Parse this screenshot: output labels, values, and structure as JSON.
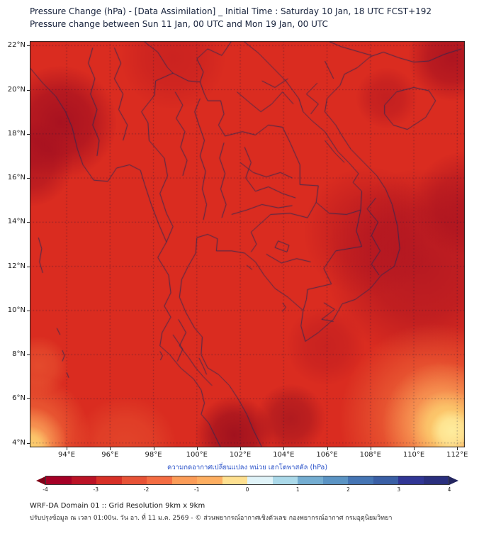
{
  "title": {
    "line1": "Pressure Change (hPa) - [Data Assimilation] _ Initial Time : Saturday 10 Jan, 18 UTC FCST+192",
    "line2": "Pressure change between Sun 11 Jan, 00 UTC and Mon 19 Jan, 00 UTC"
  },
  "map_view": {
    "lon_min": 92.3,
    "lon_max": 112.35,
    "lat_min": 3.8,
    "lat_max": 22.2
  },
  "axes": {
    "x_ticks": [
      {
        "label": "94°E",
        "lon": 94
      },
      {
        "label": "96°E",
        "lon": 96
      },
      {
        "label": "98°E",
        "lon": 98
      },
      {
        "label": "100°E",
        "lon": 100
      },
      {
        "label": "102°E",
        "lon": 102
      },
      {
        "label": "104°E",
        "lon": 104
      },
      {
        "label": "106°E",
        "lon": 106
      },
      {
        "label": "108°E",
        "lon": 108
      },
      {
        "label": "110°E",
        "lon": 110
      },
      {
        "label": "112°E",
        "lon": 112
      }
    ],
    "y_ticks": [
      {
        "label": "22°N",
        "lat": 22
      },
      {
        "label": "20°N",
        "lat": 20
      },
      {
        "label": "18°N",
        "lat": 18
      },
      {
        "label": "16°N",
        "lat": 16
      },
      {
        "label": "14°N",
        "lat": 14
      },
      {
        "label": "12°N",
        "lat": 12
      },
      {
        "label": "10°N",
        "lat": 10
      },
      {
        "label": "8°N",
        "lat": 8
      },
      {
        "label": "6°N",
        "lat": 6
      },
      {
        "label": "4°N",
        "lat": 4
      }
    ]
  },
  "field": {
    "base_color": "#da2c20",
    "blobs": [
      {
        "fx": 0.07,
        "fy": 0.2,
        "fr": 0.13,
        "c": "#9c0c20",
        "a": 0.8
      },
      {
        "fx": 0.0,
        "fy": 0.3,
        "fr": 0.1,
        "c": "#9c0c20",
        "a": 0.6
      },
      {
        "fx": 0.33,
        "fy": 0.04,
        "fr": 0.12,
        "c": "#b01320",
        "a": 0.35
      },
      {
        "fx": 0.97,
        "fy": 0.04,
        "fr": 0.1,
        "c": "#9c0c20",
        "a": 0.7
      },
      {
        "fx": 0.9,
        "fy": 0.55,
        "fr": 0.22,
        "c": "#a00e22",
        "a": 0.6
      },
      {
        "fx": 0.78,
        "fy": 0.47,
        "fr": 0.15,
        "c": "#a81122",
        "a": 0.45
      },
      {
        "fx": 1.0,
        "fy": 0.4,
        "fr": 0.12,
        "c": "#9c0c20",
        "a": 0.5
      },
      {
        "fx": 0.82,
        "fy": 0.14,
        "fr": 0.07,
        "c": "#a81122",
        "a": 0.45
      },
      {
        "fx": 0.47,
        "fy": 0.97,
        "fr": 0.09,
        "c": "#8f0a1e",
        "a": 0.75
      },
      {
        "fx": 0.6,
        "fy": 0.93,
        "fr": 0.08,
        "c": "#96101f",
        "a": 0.6
      },
      {
        "fx": 0.68,
        "fy": 0.75,
        "fr": 0.09,
        "c": "#a81122",
        "a": 0.35
      },
      {
        "fx": 0.22,
        "fy": 1.0,
        "fr": 0.12,
        "c": "#ef6a3a",
        "a": 0.4
      },
      {
        "fx": 0.93,
        "fy": 0.93,
        "fr": 0.22,
        "c": "#ef6a3a",
        "a": 0.85
      },
      {
        "fx": 0.95,
        "fy": 0.94,
        "fr": 0.14,
        "c": "#fba55b",
        "a": 0.95
      },
      {
        "fx": 0.96,
        "fy": 0.95,
        "fr": 0.085,
        "c": "#fdd271",
        "a": 1.0
      },
      {
        "fx": 0.97,
        "fy": 0.96,
        "fr": 0.05,
        "c": "#ffeea0",
        "a": 0.95
      },
      {
        "fx": 0.0,
        "fy": 0.97,
        "fr": 0.14,
        "c": "#ef6a3a",
        "a": 0.85
      },
      {
        "fx": 0.0,
        "fy": 0.99,
        "fr": 0.085,
        "c": "#fba55b",
        "a": 0.95
      },
      {
        "fx": 0.0,
        "fy": 1.0,
        "fr": 0.05,
        "c": "#fdd271",
        "a": 1.0
      },
      {
        "fx": 0.02,
        "fy": 0.8,
        "fr": 0.07,
        "c": "#ef6a3a",
        "a": 0.5
      }
    ]
  },
  "borders": [
    [
      [
        92.3,
        21.0
      ],
      [
        92.9,
        20.3
      ],
      [
        93.5,
        19.7
      ],
      [
        93.95,
        19.0
      ],
      [
        94.25,
        18.3
      ],
      [
        94.5,
        17.3
      ],
      [
        94.75,
        16.6
      ],
      [
        95.25,
        15.9
      ],
      [
        95.9,
        15.85
      ],
      [
        96.3,
        16.45
      ],
      [
        96.9,
        16.6
      ],
      [
        97.4,
        16.35
      ],
      [
        97.6,
        15.7
      ],
      [
        97.9,
        14.8
      ],
      [
        98.25,
        13.9
      ],
      [
        98.6,
        13.1
      ],
      [
        98.2,
        12.4
      ],
      [
        98.7,
        11.6
      ],
      [
        98.8,
        10.8
      ],
      [
        98.5,
        10.2
      ],
      [
        98.8,
        9.7
      ],
      [
        98.4,
        9.0
      ],
      [
        98.3,
        8.4
      ],
      [
        98.75,
        8.0
      ],
      [
        99.25,
        7.4
      ],
      [
        99.85,
        6.9
      ],
      [
        100.2,
        6.4
      ],
      [
        100.35,
        5.8
      ],
      [
        100.2,
        5.3
      ],
      [
        100.55,
        4.9
      ],
      [
        100.85,
        4.3
      ],
      [
        101.1,
        3.8
      ]
    ],
    [
      [
        103.0,
        3.8
      ],
      [
        102.6,
        4.6
      ],
      [
        102.3,
        5.3
      ],
      [
        101.9,
        6.0
      ],
      [
        101.5,
        6.6
      ],
      [
        101.0,
        7.1
      ],
      [
        100.5,
        7.4
      ],
      [
        100.2,
        8.0
      ],
      [
        100.25,
        8.8
      ],
      [
        99.9,
        9.2
      ],
      [
        99.5,
        9.9
      ],
      [
        99.2,
        10.6
      ],
      [
        99.3,
        11.4
      ],
      [
        99.6,
        12.0
      ],
      [
        99.95,
        12.6
      ],
      [
        100.0,
        13.3
      ],
      [
        100.5,
        13.45
      ],
      [
        100.95,
        13.25
      ],
      [
        100.9,
        12.7
      ],
      [
        101.6,
        12.7
      ],
      [
        102.2,
        12.6
      ],
      [
        102.7,
        12.2
      ],
      [
        103.1,
        11.6
      ],
      [
        103.6,
        11.0
      ],
      [
        104.2,
        10.6
      ],
      [
        104.9,
        10.0
      ],
      [
        104.8,
        9.3
      ],
      [
        105.0,
        8.6
      ],
      [
        105.6,
        9.0
      ],
      [
        106.3,
        9.6
      ],
      [
        106.7,
        10.3
      ],
      [
        107.3,
        10.5
      ],
      [
        108.0,
        11.0
      ],
      [
        108.5,
        11.6
      ],
      [
        109.1,
        12.0
      ],
      [
        109.35,
        12.8
      ],
      [
        109.25,
        13.8
      ],
      [
        109.0,
        14.8
      ],
      [
        108.7,
        15.5
      ],
      [
        108.3,
        16.1
      ],
      [
        107.7,
        16.7
      ],
      [
        107.1,
        17.3
      ],
      [
        106.7,
        17.9
      ],
      [
        106.4,
        18.4
      ],
      [
        105.9,
        19.0
      ],
      [
        106.0,
        19.6
      ],
      [
        106.6,
        20.2
      ],
      [
        106.8,
        20.7
      ],
      [
        107.4,
        21.0
      ],
      [
        108.0,
        21.5
      ],
      [
        108.6,
        21.7
      ],
      [
        109.3,
        21.45
      ],
      [
        110.0,
        21.25
      ],
      [
        110.7,
        21.3
      ],
      [
        111.4,
        21.6
      ],
      [
        112.2,
        21.85
      ]
    ],
    [
      [
        108.65,
        19.3
      ],
      [
        109.2,
        19.9
      ],
      [
        110.0,
        20.1
      ],
      [
        110.7,
        19.95
      ],
      [
        111.0,
        19.5
      ],
      [
        110.55,
        18.75
      ],
      [
        109.7,
        18.2
      ],
      [
        109.05,
        18.4
      ],
      [
        108.65,
        18.9
      ],
      [
        108.65,
        19.3
      ]
    ],
    [
      [
        98.6,
        13.1
      ],
      [
        98.9,
        13.8
      ],
      [
        98.6,
        14.4
      ],
      [
        98.3,
        15.3
      ],
      [
        98.65,
        16.1
      ],
      [
        98.5,
        16.9
      ],
      [
        97.8,
        17.7
      ],
      [
        97.75,
        18.5
      ],
      [
        97.45,
        19.0
      ],
      [
        98.05,
        19.75
      ],
      [
        98.1,
        20.4
      ],
      [
        98.9,
        20.75
      ],
      [
        99.6,
        20.4
      ],
      [
        100.15,
        20.35
      ]
    ],
    [
      [
        100.15,
        20.35
      ],
      [
        100.35,
        19.8
      ],
      [
        100.5,
        19.5
      ],
      [
        101.1,
        19.5
      ],
      [
        101.25,
        18.9
      ],
      [
        101.0,
        18.4
      ],
      [
        101.3,
        17.9
      ],
      [
        102.1,
        18.1
      ],
      [
        102.7,
        17.95
      ],
      [
        103.3,
        18.4
      ],
      [
        103.95,
        18.3
      ],
      [
        104.3,
        17.6
      ],
      [
        104.75,
        16.6
      ],
      [
        104.75,
        15.7
      ],
      [
        105.6,
        15.65
      ],
      [
        105.5,
        14.9
      ]
    ],
    [
      [
        105.5,
        14.9
      ],
      [
        105.1,
        14.2
      ],
      [
        104.3,
        14.4
      ],
      [
        103.4,
        14.35
      ],
      [
        102.5,
        13.55
      ],
      [
        102.75,
        13.0
      ],
      [
        102.5,
        12.65
      ]
    ],
    [
      [
        105.5,
        14.9
      ],
      [
        106.1,
        14.4
      ],
      [
        106.9,
        14.35
      ],
      [
        107.55,
        14.55
      ],
      [
        107.35,
        13.6
      ],
      [
        107.6,
        12.9
      ],
      [
        106.4,
        12.7
      ],
      [
        105.85,
        11.9
      ],
      [
        106.2,
        11.2
      ],
      [
        105.1,
        10.95
      ],
      [
        105.05,
        10.5
      ],
      [
        104.9,
        10.0
      ]
    ],
    [
      [
        102.15,
        22.2
      ],
      [
        102.85,
        21.65
      ],
      [
        103.5,
        21.0
      ],
      [
        104.1,
        20.4
      ],
      [
        104.7,
        19.6
      ],
      [
        104.9,
        19.0
      ],
      [
        105.3,
        18.6
      ],
      [
        105.9,
        18.1
      ],
      [
        106.5,
        17.2
      ],
      [
        107.0,
        16.7
      ],
      [
        107.45,
        16.2
      ],
      [
        107.2,
        15.8
      ],
      [
        107.6,
        15.4
      ],
      [
        107.55,
        14.55
      ]
    ],
    [
      [
        108.05,
        21.55
      ],
      [
        107.35,
        21.75
      ],
      [
        106.65,
        21.95
      ],
      [
        106.05,
        22.2
      ]
    ],
    [
      [
        100.15,
        20.35
      ],
      [
        100.3,
        20.8
      ],
      [
        100.0,
        21.4
      ],
      [
        100.5,
        21.85
      ],
      [
        101.15,
        21.55
      ],
      [
        101.6,
        22.2
      ]
    ],
    [
      [
        97.55,
        22.2
      ],
      [
        98.2,
        21.7
      ],
      [
        98.65,
        21.0
      ],
      [
        98.9,
        20.75
      ]
    ],
    [
      [
        99.0,
        19.9
      ],
      [
        99.35,
        19.3
      ],
      [
        99.05,
        18.7
      ],
      [
        99.45,
        18.1
      ],
      [
        99.25,
        17.4
      ],
      [
        99.55,
        16.8
      ],
      [
        99.35,
        16.1
      ]
    ],
    [
      [
        100.15,
        19.6
      ],
      [
        99.9,
        19.0
      ],
      [
        100.1,
        18.4
      ],
      [
        100.35,
        17.7
      ],
      [
        100.15,
        17.0
      ],
      [
        100.4,
        16.3
      ],
      [
        100.25,
        15.5
      ],
      [
        100.45,
        14.8
      ],
      [
        100.3,
        14.1
      ]
    ],
    [
      [
        101.25,
        17.6
      ],
      [
        101.05,
        16.9
      ],
      [
        101.3,
        16.2
      ],
      [
        101.1,
        15.5
      ],
      [
        101.35,
        14.8
      ],
      [
        101.15,
        14.2
      ]
    ],
    [
      [
        102.2,
        17.4
      ],
      [
        102.5,
        16.7
      ],
      [
        102.25,
        16.0
      ],
      [
        102.7,
        15.4
      ],
      [
        103.3,
        15.6
      ],
      [
        103.95,
        15.3
      ],
      [
        104.55,
        15.1
      ]
    ],
    [
      [
        102.0,
        16.7
      ],
      [
        102.6,
        16.25
      ],
      [
        103.2,
        16.05
      ],
      [
        103.85,
        16.25
      ],
      [
        104.4,
        16.0
      ]
    ],
    [
      [
        101.6,
        14.35
      ],
      [
        102.3,
        14.55
      ],
      [
        103.0,
        14.8
      ],
      [
        103.75,
        14.65
      ],
      [
        104.4,
        14.75
      ]
    ],
    [
      [
        99.15,
        9.6
      ],
      [
        99.5,
        9.0
      ],
      [
        99.2,
        8.4
      ],
      [
        99.6,
        7.9
      ],
      [
        99.95,
        7.4
      ],
      [
        100.3,
        7.0
      ],
      [
        100.7,
        6.6
      ]
    ],
    [
      [
        98.9,
        8.9
      ],
      [
        99.35,
        8.25
      ],
      [
        99.1,
        7.7
      ]
    ],
    [
      [
        101.85,
        19.9
      ],
      [
        102.45,
        19.4
      ],
      [
        102.95,
        19.0
      ],
      [
        103.45,
        19.35
      ],
      [
        103.95,
        19.9
      ],
      [
        104.45,
        19.35
      ]
    ],
    [
      [
        103.0,
        20.4
      ],
      [
        103.6,
        20.1
      ],
      [
        104.2,
        20.5
      ]
    ],
    [
      [
        105.55,
        20.3
      ],
      [
        105.05,
        19.8
      ],
      [
        105.6,
        19.35
      ],
      [
        105.25,
        18.9
      ]
    ],
    [
      [
        105.9,
        17.7
      ],
      [
        106.35,
        17.15
      ],
      [
        106.8,
        16.7
      ]
    ],
    [
      [
        108.25,
        15.1
      ],
      [
        107.85,
        14.6
      ],
      [
        108.35,
        14.0
      ],
      [
        108.05,
        13.4
      ],
      [
        108.45,
        12.7
      ],
      [
        108.05,
        12.1
      ],
      [
        108.4,
        11.6
      ]
    ],
    [
      [
        105.85,
        10.35
      ],
      [
        106.35,
        10.05
      ],
      [
        105.75,
        9.6
      ],
      [
        106.3,
        9.5
      ]
    ],
    [
      [
        103.75,
        13.15
      ],
      [
        104.25,
        12.95
      ],
      [
        104.15,
        12.65
      ],
      [
        103.6,
        12.85
      ],
      [
        103.75,
        13.15
      ]
    ],
    [
      [
        103.2,
        12.55
      ],
      [
        103.9,
        12.15
      ],
      [
        104.6,
        12.35
      ],
      [
        105.25,
        12.2
      ]
    ],
    [
      [
        96.2,
        21.9
      ],
      [
        96.5,
        21.2
      ],
      [
        96.2,
        20.5
      ],
      [
        96.6,
        19.8
      ],
      [
        96.4,
        19.1
      ],
      [
        96.8,
        18.4
      ],
      [
        96.6,
        17.7
      ]
    ],
    [
      [
        95.2,
        21.9
      ],
      [
        95.0,
        21.2
      ],
      [
        95.3,
        20.5
      ],
      [
        95.1,
        19.8
      ],
      [
        95.4,
        19.1
      ],
      [
        95.2,
        18.4
      ],
      [
        95.5,
        17.7
      ],
      [
        95.4,
        17.0
      ]
    ],
    [
      [
        105.9,
        21.3
      ],
      [
        106.1,
        20.9
      ],
      [
        106.3,
        20.5
      ]
    ],
    [
      [
        92.7,
        13.3
      ],
      [
        92.85,
        12.8
      ],
      [
        92.75,
        12.2
      ],
      [
        92.9,
        11.7
      ]
    ],
    [
      [
        93.55,
        9.2
      ],
      [
        93.7,
        8.9
      ]
    ],
    [
      [
        93.8,
        8.2
      ],
      [
        93.9,
        7.95
      ],
      [
        93.8,
        7.7
      ]
    ],
    [
      [
        94.0,
        7.2
      ],
      [
        94.1,
        6.95
      ]
    ],
    [
      [
        98.3,
        8.15
      ],
      [
        98.42,
        7.95
      ],
      [
        98.32,
        7.75
      ]
    ],
    [
      [
        103.95,
        10.35
      ],
      [
        104.1,
        10.15
      ],
      [
        103.95,
        9.95
      ]
    ],
    [
      [
        100.1,
        7.85
      ],
      [
        100.3,
        7.45
      ],
      [
        100.45,
        7.1
      ]
    ],
    [
      [
        102.3,
        12.05
      ],
      [
        102.55,
        11.85
      ]
    ]
  ],
  "colorbar": {
    "label": "ความกดอากาศเปลี่ยนแปลง หน่วย เฮกโตพาสคัล (hPa)",
    "min": -4,
    "max": 4,
    "tick_labels": [
      "-4",
      "-3",
      "-2",
      "-1",
      "0",
      "1",
      "2",
      "3",
      "4"
    ],
    "segment_colors": [
      "#a50026",
      "#bb1326",
      "#d73027",
      "#e75337",
      "#f46d43",
      "#fb9c58",
      "#fdae61",
      "#fee090",
      "#e0f3f8",
      "#abd9e9",
      "#74add1",
      "#5b94c4",
      "#4575b4",
      "#3a5fa5",
      "#313695",
      "#2a2f7e"
    ],
    "left_arrow_color": "#800018",
    "right_arrow_color": "#23255f"
  },
  "footer": {
    "line1": "WRF-DA Domain 01 :: Grid Resolution 9km x 9km",
    "line2": "ปรับปรุงข้อมูล ณ เวลา 01:00น. วัน อา. ที่ 11 ม.ค. 2569 - © ส่วนพยากรณ์อากาศเชิงตัวเลข กองพยากรณ์อากาศ กรมอุตุนิยมวิทยา"
  }
}
